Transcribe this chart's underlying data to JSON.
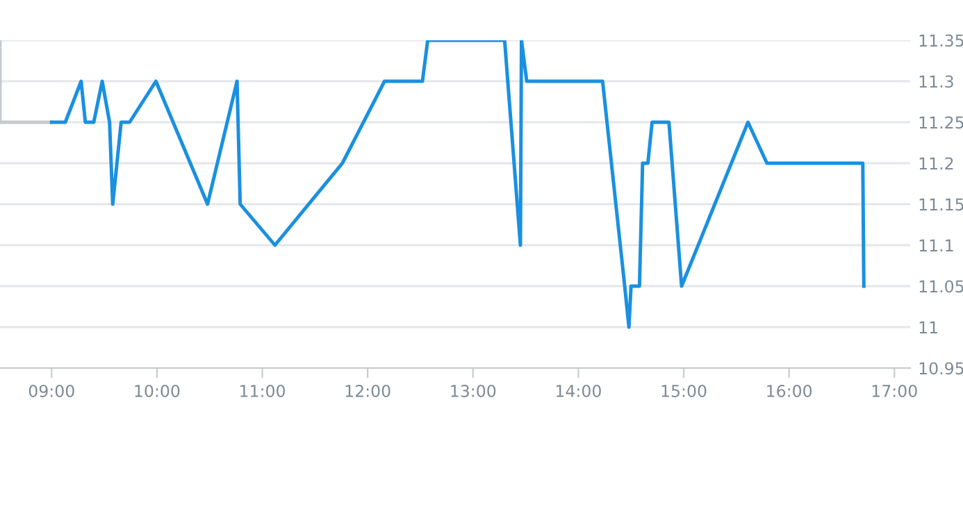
{
  "chart_data": {
    "type": "line",
    "series": [
      {
        "color": "#c5cacf",
        "x": [
          8.51,
          8.51,
          9.0
        ],
        "values": [
          11.35,
          11.25,
          11.25
        ]
      },
      {
        "color": "#1a90e0",
        "x": [
          9.0,
          9.13,
          9.28,
          9.32,
          9.4,
          9.48,
          9.55,
          9.58,
          9.66,
          9.74,
          9.99,
          10.48,
          10.76,
          10.79,
          11.12,
          11.76,
          12.16,
          12.52,
          12.57,
          13.3,
          13.45,
          13.46,
          13.51,
          14.23,
          14.44,
          14.48,
          14.5,
          14.58,
          14.61,
          14.66,
          14.7,
          14.86,
          14.98,
          15.61,
          15.79,
          16.7,
          16.71
        ],
        "values": [
          11.25,
          11.25,
          11.3,
          11.25,
          11.25,
          11.3,
          11.25,
          11.15,
          11.25,
          11.25,
          11.3,
          11.15,
          11.3,
          11.15,
          11.1,
          11.2,
          11.3,
          11.3,
          11.35,
          11.35,
          11.1,
          11.35,
          11.3,
          11.3,
          11.05,
          11.0,
          11.05,
          11.05,
          11.2,
          11.2,
          11.25,
          11.25,
          11.05,
          11.25,
          11.2,
          11.2,
          11.05
        ]
      }
    ],
    "xlim": [
      8.51,
      17.15
    ],
    "xticks": [
      {
        "value": 9,
        "label": "09:00"
      },
      {
        "value": 10,
        "label": "10:00"
      },
      {
        "value": 11,
        "label": "11:00"
      },
      {
        "value": 12,
        "label": "12:00"
      },
      {
        "value": 13,
        "label": "13:00"
      },
      {
        "value": 14,
        "label": "14:00"
      },
      {
        "value": 15,
        "label": "15:00"
      },
      {
        "value": 16,
        "label": "16:00"
      },
      {
        "value": 17,
        "label": "17:00"
      }
    ],
    "ylim": [
      10.95,
      11.35
    ],
    "yticks": [
      10.95,
      11,
      11.05,
      11.1,
      11.15,
      11.2,
      11.25,
      11.3,
      11.35
    ],
    "grid": "y",
    "legend": false,
    "marker": "none",
    "line_style": "solid"
  }
}
